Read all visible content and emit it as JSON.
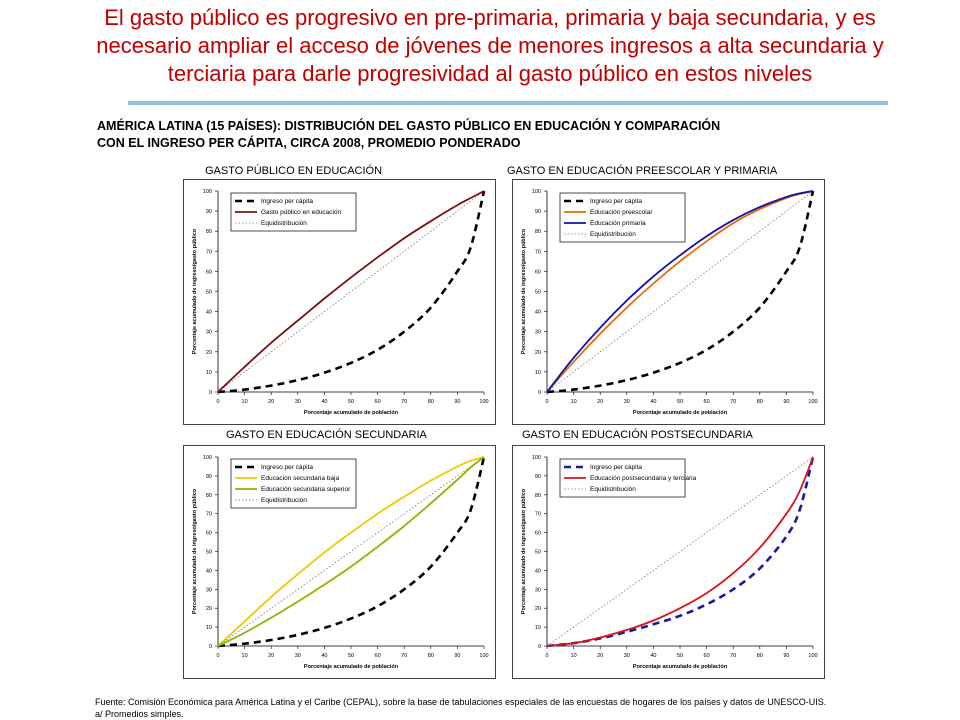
{
  "slide": {
    "title_line1": "El gasto público es progresivo en pre-primaria, primaria y baja secundaria, y es",
    "title_line2": "necesario ampliar el acceso de jóvenes de menores ingresos a alta secundaria y",
    "title_line3": "terciaria para darle progresividad al gasto público en estos niveles",
    "subtitle_line1": "AMÉRICA LATINA (15 PAÍSES): DISTRIBUCIÓN DEL GASTO PÚBLICO EN EDUCACIÓN Y COMPARACIÓN",
    "subtitle_line2": "CON EL INGRESO PER CÁPITA, CIRCA 2008, PROMEDIO PONDERADO",
    "footnote_line1": "Fuente: Comisión Económica para América Latina y el Caribe (CEPAL), sobre la base de tabulaciones especiales de las encuestas de hogares de los países y datos de UNESCO-UIS.",
    "footnote_line2": "a/ Promedios simples."
  },
  "chart_data": [
    {
      "type": "line",
      "panel_title": "GASTO PÚBLICO EN EDUCACIÓN",
      "xlabel": "Porcentaje acumulado de población",
      "ylabel": "Porcentaje acumulado de ingreso/gasto público",
      "xlim": [
        0,
        100
      ],
      "ylim": [
        0,
        100
      ],
      "ticks": [
        "0",
        "10",
        "20",
        "30",
        "40",
        "50",
        "60",
        "70",
        "80",
        "90",
        "100"
      ],
      "x": [
        0,
        10,
        20,
        30,
        40,
        50,
        60,
        70,
        80,
        90,
        95,
        100
      ],
      "series": [
        {
          "name": "Ingreso per cápita",
          "color": "#000000",
          "style": "dash-thick",
          "values": [
            0,
            1.2,
            3.2,
            5.9,
            9.6,
            14.5,
            21.0,
            30.0,
            42.0,
            60.0,
            72.0,
            100
          ]
        },
        {
          "name": "Gasto público en educación",
          "color": "#7B0F0F",
          "style": "solid",
          "values": [
            0,
            12.5,
            24.5,
            35.5,
            46.5,
            57.0,
            67.0,
            76.5,
            85.0,
            93.0,
            96.5,
            100
          ]
        },
        {
          "name": "Equidistribución",
          "color": "#777777",
          "style": "dotted",
          "values": [
            0,
            10,
            20,
            30,
            40,
            50,
            60,
            70,
            80,
            90,
            95,
            100
          ]
        }
      ]
    },
    {
      "type": "line",
      "panel_title": "GASTO EN EDUCACIÓN PREESCOLAR Y PRIMARIA",
      "xlabel": "Porcentaje acumulado de población",
      "ylabel": "Porcentaje acumulado de ingreso/gasto público",
      "xlim": [
        0,
        100
      ],
      "ylim": [
        0,
        100
      ],
      "ticks": [
        "0",
        "10",
        "20",
        "30",
        "40",
        "50",
        "60",
        "70",
        "80",
        "90",
        "100"
      ],
      "x": [
        0,
        10,
        20,
        30,
        40,
        50,
        60,
        70,
        80,
        90,
        95,
        100
      ],
      "series": [
        {
          "name": "Ingreso per cápita",
          "color": "#000000",
          "style": "dash-thick",
          "values": [
            0,
            1.2,
            3.2,
            5.9,
            9.6,
            14.5,
            21.0,
            30.0,
            42.0,
            60.0,
            72.0,
            100
          ]
        },
        {
          "name": "Educación preescolar",
          "color": "#E46C0A",
          "style": "solid",
          "values": [
            0,
            15.0,
            29.0,
            42.0,
            54.0,
            65.0,
            75.0,
            84.0,
            91.0,
            96.5,
            98.5,
            100
          ]
        },
        {
          "name": "Educación primaria",
          "color": "#1010B0",
          "style": "solid",
          "values": [
            0,
            17.0,
            32.0,
            45.5,
            57.5,
            68.0,
            77.5,
            85.5,
            92.0,
            97.0,
            98.8,
            100
          ]
        },
        {
          "name": "Equidistribución",
          "color": "#777777",
          "style": "dotted",
          "values": [
            0,
            10,
            20,
            30,
            40,
            50,
            60,
            70,
            80,
            90,
            95,
            100
          ]
        }
      ]
    },
    {
      "type": "line",
      "panel_title": "GASTO EN EDUCACIÓN SECUNDARIA",
      "xlabel": "Porcentaje acumulado de población",
      "ylabel": "Porcentaje acumulado de ingreso/gasto público",
      "xlim": [
        0,
        100
      ],
      "ylim": [
        0,
        100
      ],
      "ticks": [
        "0",
        "10",
        "20",
        "30",
        "40",
        "50",
        "60",
        "70",
        "80",
        "90",
        "100"
      ],
      "x": [
        0,
        10,
        20,
        30,
        40,
        50,
        60,
        70,
        80,
        90,
        95,
        100
      ],
      "series": [
        {
          "name": "Ingreso per cápita",
          "color": "#000000",
          "style": "dash-thick",
          "values": [
            0,
            1.2,
            3.2,
            5.9,
            9.6,
            14.5,
            21.0,
            30.0,
            42.0,
            60.0,
            72.0,
            100
          ]
        },
        {
          "name": "Educación secundaria baja",
          "color": "#F0C800",
          "style": "solid",
          "values": [
            0,
            13.0,
            26.0,
            38.0,
            49.5,
            60.0,
            70.0,
            79.0,
            87.5,
            95.0,
            98.0,
            100
          ]
        },
        {
          "name": "Educación secundaria superior",
          "color": "#8DB600",
          "style": "solid",
          "values": [
            0,
            7.0,
            15.0,
            23.5,
            32.5,
            42.0,
            52.5,
            63.5,
            75.5,
            88.0,
            94.5,
            100
          ]
        },
        {
          "name": "Equidistribución",
          "color": "#777777",
          "style": "dotted",
          "values": [
            0,
            10,
            20,
            30,
            40,
            50,
            60,
            70,
            80,
            90,
            95,
            100
          ]
        }
      ]
    },
    {
      "type": "line",
      "panel_title": "GASTO EN EDUCACIÓN POSTSECUNDARIA",
      "xlabel": "Porcentaje acumulado de población",
      "ylabel": "Porcentaje acumulado de ingreso/gasto público",
      "xlim": [
        0,
        100
      ],
      "ylim": [
        0,
        100
      ],
      "ticks": [
        "0",
        "10",
        "20",
        "30",
        "40",
        "50",
        "60",
        "70",
        "80",
        "90",
        "100"
      ],
      "x": [
        0,
        10,
        20,
        30,
        40,
        50,
        60,
        70,
        80,
        90,
        95,
        100
      ],
      "series": [
        {
          "name": "Ingreso per cápita",
          "color": "#1A1A9A",
          "style": "dash-thick",
          "values": [
            0,
            1.5,
            4.0,
            7.5,
            11.5,
            16.0,
            22.0,
            30.0,
            41.0,
            58.0,
            72.0,
            100
          ]
        },
        {
          "name": "Educación postsecundaria y terciaria",
          "color": "#D4141C",
          "style": "solid",
          "values": [
            0,
            1.5,
            4.5,
            8.5,
            13.5,
            20.0,
            28.0,
            38.5,
            52.0,
            70.0,
            82.0,
            100
          ]
        },
        {
          "name": "Equidistribución",
          "color": "#777777",
          "style": "dotted",
          "values": [
            0,
            10,
            20,
            30,
            40,
            50,
            60,
            70,
            80,
            90,
            95,
            100
          ]
        }
      ]
    }
  ]
}
